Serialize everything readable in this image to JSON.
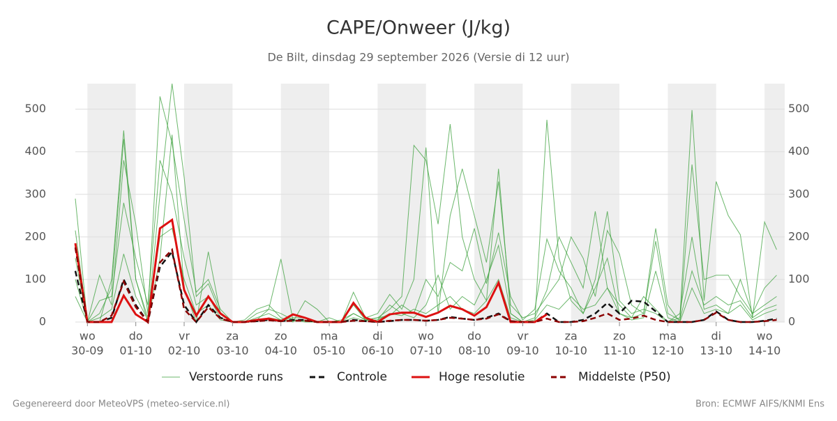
{
  "chart_data": {
    "type": "line",
    "title": "CAPE/Onweer (J/kg)",
    "subtitle": "De Bilt, dinsdag 29 september 2026 (Versie di 12 uur)",
    "footer_left": "Gegenereerd door MeteoVPS (meteo-service.nl)",
    "footer_right": "Bron: ECMWF AIFS/KNMI Ens",
    "x": [
      -6,
      0,
      6,
      12,
      18,
      24,
      30,
      36,
      42,
      48,
      54,
      60,
      66,
      72,
      78,
      84,
      90,
      96,
      102,
      108,
      114,
      120,
      126,
      132,
      138,
      144,
      150,
      156,
      162,
      168,
      174,
      180,
      186,
      192,
      198,
      204,
      210,
      216,
      222,
      228,
      234,
      240,
      246,
      252,
      258,
      264,
      270,
      276,
      282,
      288,
      294,
      300,
      306,
      312,
      318,
      324,
      330,
      336,
      342
    ],
    "xlim": [
      -6,
      346
    ],
    "xticks": [
      {
        "value": 0,
        "label": "wo"
      },
      {
        "value": 24,
        "label": "do"
      },
      {
        "value": 48,
        "label": "vr"
      },
      {
        "value": 72,
        "label": "za"
      },
      {
        "value": 96,
        "label": "zo"
      },
      {
        "value": 120,
        "label": "ma"
      },
      {
        "value": 144,
        "label": "di"
      },
      {
        "value": 168,
        "label": "wo"
      },
      {
        "value": 192,
        "label": "do"
      },
      {
        "value": 216,
        "label": "vr"
      },
      {
        "value": 240,
        "label": "za"
      },
      {
        "value": 264,
        "label": "zo"
      },
      {
        "value": 288,
        "label": "ma"
      },
      {
        "value": 312,
        "label": "di"
      },
      {
        "value": 336,
        "label": "wo"
      }
    ],
    "xtick_dates": [
      "30-09",
      "01-10",
      "02-10",
      "03-10",
      "04-10",
      "05-10",
      "06-10",
      "07-10",
      "08-10",
      "09-10",
      "10-10",
      "11-10",
      "12-10",
      "13-10",
      "14-10"
    ],
    "ylim": [
      0,
      560
    ],
    "yticks": [
      0,
      100,
      200,
      300,
      400,
      500
    ],
    "grid": true,
    "series": [
      {
        "name": "Verstoorde runs",
        "color": "#3a9f3a",
        "dash": "solid",
        "members": [
          [
            290,
            0,
            0,
            100,
            450,
            100,
            0,
            150,
            440,
            80,
            0,
            165,
            20,
            0,
            0,
            20,
            30,
            148,
            5,
            0,
            0,
            10,
            0,
            20,
            5,
            10,
            30,
            60,
            415,
            380,
            230,
            465,
            200,
            100,
            50,
            360,
            20,
            0,
            0,
            475,
            150,
            50,
            20,
            100,
            260,
            50,
            20,
            30,
            20,
            0,
            10,
            498,
            50,
            330,
            250,
            205,
            10,
            235,
            170
          ],
          [
            215,
            0,
            110,
            40,
            380,
            230,
            20,
            530,
            420,
            240,
            70,
            100,
            30,
            0,
            5,
            30,
            40,
            10,
            0,
            50,
            30,
            0,
            0,
            70,
            10,
            20,
            65,
            30,
            100,
            410,
            20,
            250,
            360,
            250,
            140,
            330,
            40,
            10,
            20,
            60,
            100,
            200,
            150,
            60,
            215,
            160,
            40,
            20,
            220,
            40,
            0,
            370,
            100,
            110,
            110,
            60,
            20,
            80,
            110
          ],
          [
            150,
            0,
            20,
            80,
            430,
            100,
            10,
            300,
            560,
            340,
            60,
            90,
            20,
            0,
            0,
            10,
            20,
            5,
            10,
            10,
            0,
            0,
            5,
            20,
            5,
            10,
            15,
            40,
            20,
            100,
            60,
            140,
            120,
            220,
            90,
            210,
            60,
            5,
            30,
            195,
            120,
            80,
            20,
            80,
            150,
            20,
            10,
            60,
            30,
            0,
            20,
            200,
            30,
            40,
            20,
            100,
            20,
            40,
            60
          ],
          [
            100,
            0,
            50,
            60,
            280,
            150,
            40,
            380,
            300,
            150,
            40,
            60,
            10,
            0,
            0,
            5,
            30,
            20,
            5,
            5,
            0,
            0,
            0,
            40,
            5,
            5,
            40,
            20,
            10,
            40,
            110,
            30,
            60,
            40,
            100,
            180,
            20,
            0,
            10,
            75,
            200,
            140,
            80,
            260,
            80,
            40,
            10,
            20,
            190,
            20,
            5,
            120,
            40,
            60,
            40,
            50,
            10,
            30,
            40
          ],
          [
            60,
            0,
            10,
            30,
            160,
            60,
            5,
            200,
            220,
            100,
            20,
            40,
            5,
            0,
            0,
            3,
            10,
            5,
            2,
            3,
            0,
            0,
            0,
            10,
            3,
            5,
            20,
            15,
            30,
            20,
            40,
            60,
            30,
            20,
            50,
            100,
            10,
            0,
            5,
            40,
            30,
            60,
            30,
            40,
            80,
            20,
            5,
            10,
            120,
            10,
            0,
            80,
            20,
            30,
            20,
            40,
            5,
            20,
            30
          ]
        ]
      },
      {
        "name": "Controle",
        "color": "#111111",
        "dash": "dashed",
        "values": [
          120,
          0,
          0,
          10,
          100,
          40,
          0,
          130,
          165,
          40,
          0,
          40,
          10,
          0,
          0,
          2,
          5,
          2,
          5,
          5,
          0,
          0,
          0,
          5,
          2,
          0,
          2,
          5,
          5,
          3,
          5,
          12,
          8,
          5,
          10,
          20,
          2,
          0,
          0,
          20,
          0,
          0,
          5,
          20,
          45,
          20,
          50,
          48,
          25,
          0,
          0,
          0,
          5,
          25,
          5,
          0,
          0,
          3,
          8
        ]
      },
      {
        "name": "Hoge resolutie",
        "color": "#dd1111",
        "dash": "solid",
        "values": [
          185,
          0,
          0,
          0,
          62,
          18,
          0,
          220,
          240,
          75,
          15,
          60,
          20,
          0,
          0,
          5,
          8,
          2,
          18,
          10,
          0,
          0,
          0,
          45,
          10,
          0,
          18,
          22,
          22,
          12,
          22,
          38,
          30,
          15,
          35,
          92,
          0,
          0,
          0,
          18,
          null,
          null,
          null,
          null,
          null,
          null,
          null,
          null,
          null,
          null,
          null,
          null,
          null,
          null,
          null,
          null,
          null,
          null,
          null
        ]
      },
      {
        "name": "Middelste (P50)",
        "color": "#8b0000",
        "dash": "dashed",
        "values": [
          175,
          0,
          0,
          15,
          95,
          35,
          0,
          140,
          170,
          30,
          0,
          35,
          8,
          0,
          0,
          2,
          4,
          2,
          3,
          3,
          0,
          0,
          0,
          3,
          2,
          0,
          3,
          5,
          5,
          3,
          5,
          10,
          8,
          5,
          8,
          18,
          2,
          0,
          0,
          8,
          0,
          0,
          2,
          10,
          20,
          5,
          8,
          15,
          5,
          0,
          0,
          0,
          5,
          22,
          5,
          0,
          0,
          2,
          5
        ]
      }
    ]
  }
}
